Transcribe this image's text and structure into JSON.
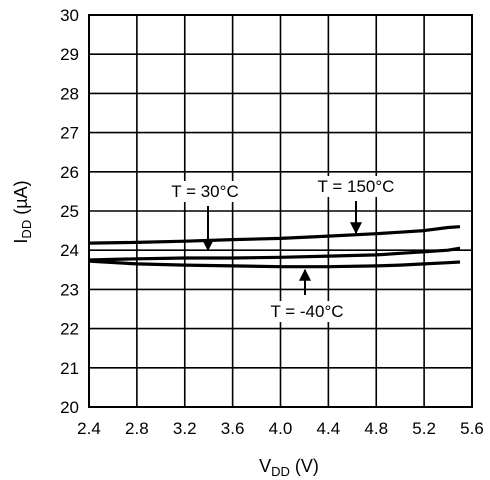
{
  "chart_data": {
    "type": "line",
    "xlabel_main": "V",
    "xlabel_sub": "DD",
    "xlabel_unit": " (V)",
    "ylabel_main": "I",
    "ylabel_sub": "DD",
    "ylabel_unit": " (µA)",
    "xlim": [
      2.4,
      5.6
    ],
    "ylim": [
      20,
      30
    ],
    "xticks": [
      2.4,
      2.8,
      3.2,
      3.6,
      4.0,
      4.4,
      4.8,
      5.2,
      5.6
    ],
    "xtick_labels": [
      "2.4",
      "2.8",
      "3.2",
      "3.6",
      "4.0",
      "4.4",
      "4.8",
      "5.2",
      "5.6"
    ],
    "yticks": [
      20,
      21,
      22,
      23,
      24,
      25,
      26,
      27,
      28,
      29,
      30
    ],
    "ytick_labels": [
      "20",
      "21",
      "22",
      "23",
      "24",
      "25",
      "26",
      "27",
      "28",
      "29",
      "30"
    ],
    "grid": true,
    "series": [
      {
        "name": "T = 150°C",
        "x": [
          2.4,
          2.8,
          3.2,
          3.6,
          4.0,
          4.4,
          4.8,
          5.0,
          5.2,
          5.4,
          5.5
        ],
        "y": [
          24.18,
          24.2,
          24.23,
          24.27,
          24.3,
          24.36,
          24.42,
          24.46,
          24.5,
          24.58,
          24.6
        ]
      },
      {
        "name": "T = 30°C",
        "x": [
          2.4,
          2.8,
          3.2,
          3.6,
          4.0,
          4.4,
          4.8,
          5.0,
          5.2,
          5.4,
          5.5
        ],
        "y": [
          23.75,
          23.78,
          23.8,
          23.8,
          23.82,
          23.85,
          23.88,
          23.92,
          23.96,
          24.0,
          24.05
        ]
      },
      {
        "name": "T = -40°C",
        "x": [
          2.4,
          2.8,
          3.2,
          3.6,
          4.0,
          4.4,
          4.8,
          5.0,
          5.2,
          5.4,
          5.5
        ],
        "y": [
          23.72,
          23.65,
          23.62,
          23.6,
          23.58,
          23.58,
          23.6,
          23.62,
          23.65,
          23.68,
          23.7
        ]
      }
    ],
    "annotations": [
      {
        "text": "T = 30°C",
        "series": "T = 30°C",
        "arrow_to": [
          3.4,
          23.82
        ]
      },
      {
        "text": "T = 150°C",
        "series": "T = 150°C",
        "arrow_to": [
          4.6,
          24.38
        ]
      },
      {
        "text": "T = -40°C",
        "series": "T = -40°C",
        "arrow_to": [
          4.2,
          23.58
        ]
      }
    ]
  }
}
